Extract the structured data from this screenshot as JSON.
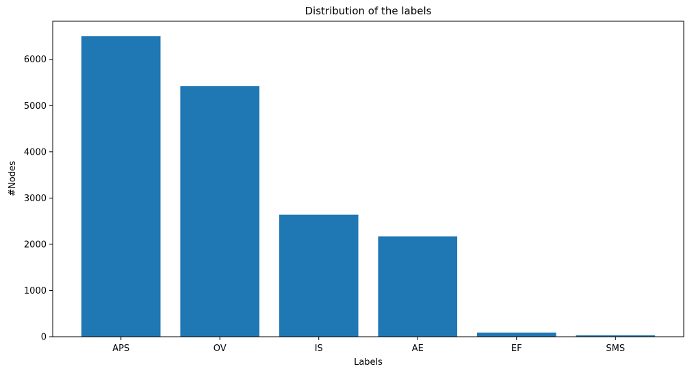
{
  "chart_data": {
    "type": "bar",
    "title": "Distribution of the labels",
    "xlabel": "Labels",
    "ylabel": "#Nodes",
    "categories": [
      "APS",
      "OV",
      "IS",
      "AE",
      "EF",
      "SMS"
    ],
    "values": [
      6500,
      5420,
      2640,
      2170,
      90,
      30
    ],
    "ylim": [
      0,
      6825
    ],
    "yticks": [
      0,
      1000,
      2000,
      3000,
      4000,
      5000,
      6000
    ],
    "grid": false,
    "bar_color": "#1f77b4"
  }
}
